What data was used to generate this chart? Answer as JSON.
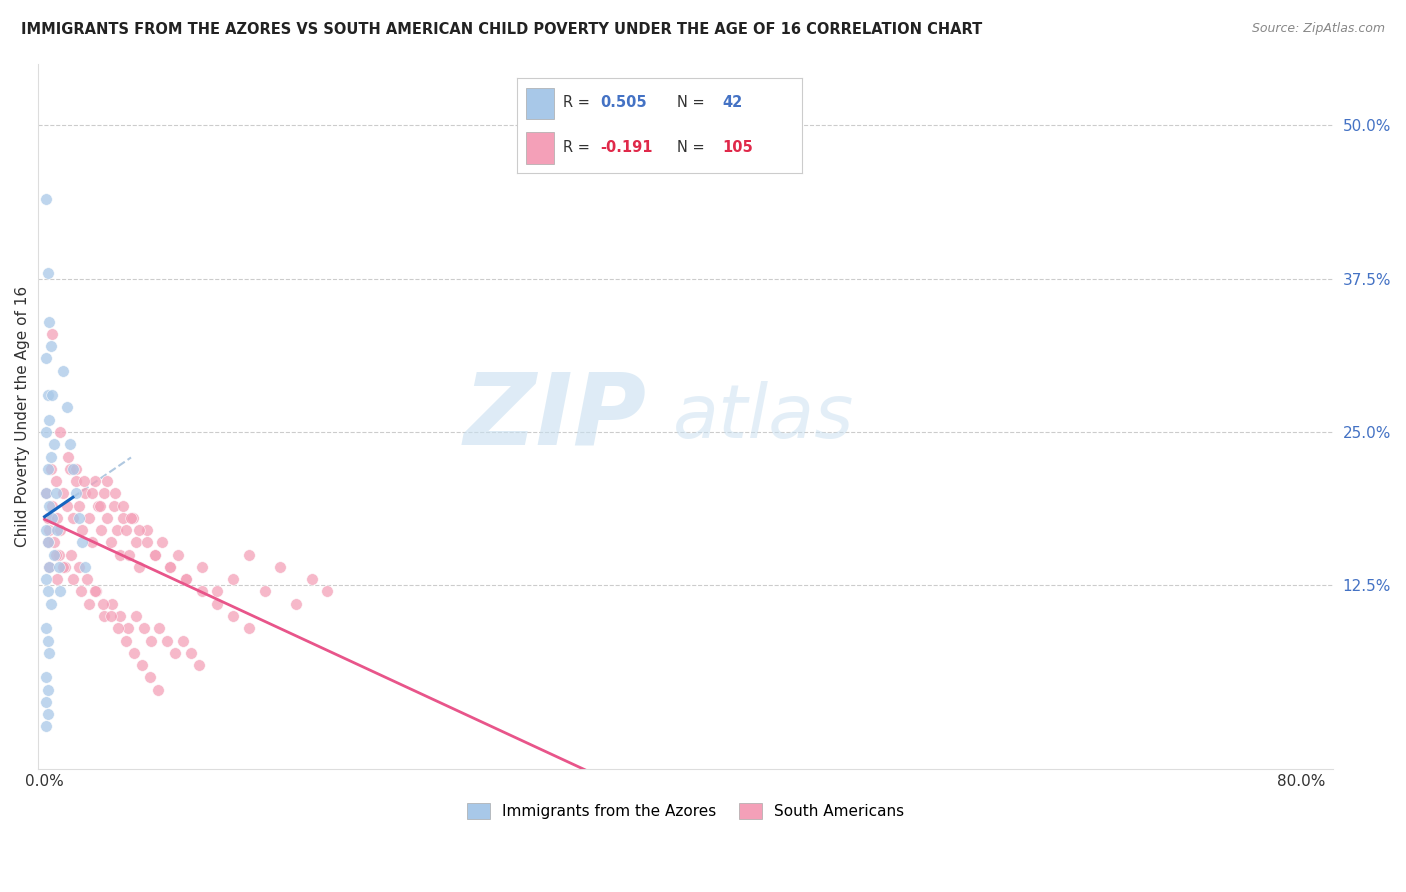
{
  "title": "IMMIGRANTS FROM THE AZORES VS SOUTH AMERICAN CHILD POVERTY UNDER THE AGE OF 16 CORRELATION CHART",
  "source": "Source: ZipAtlas.com",
  "ylabel": "Child Poverty Under the Age of 16",
  "right_yticks": [
    "50.0%",
    "37.5%",
    "25.0%",
    "12.5%"
  ],
  "right_ytick_vals": [
    0.5,
    0.375,
    0.25,
    0.125
  ],
  "legend1_label": "Immigrants from the Azores",
  "legend2_label": "South Americans",
  "r1": "0.505",
  "n1": "42",
  "r2": "-0.191",
  "n2": "105",
  "blue_color": "#a8c8e8",
  "pink_color": "#f4a0b8",
  "line_blue": "#1565c0",
  "line_pink": "#e8558a",
  "line_dash": "#b0c8e0",
  "watermark_zip": "ZIP",
  "watermark_atlas": "atlas",
  "xlim_max": 0.8,
  "ylim_max": 0.55,
  "blue_x": [
    0.001,
    0.001,
    0.001,
    0.001,
    0.001,
    0.001,
    0.001,
    0.001,
    0.001,
    0.001,
    0.002,
    0.002,
    0.002,
    0.002,
    0.002,
    0.002,
    0.002,
    0.002,
    0.003,
    0.003,
    0.003,
    0.003,
    0.003,
    0.004,
    0.004,
    0.004,
    0.005,
    0.005,
    0.006,
    0.006,
    0.007,
    0.008,
    0.009,
    0.01,
    0.012,
    0.014,
    0.016,
    0.018,
    0.02,
    0.022,
    0.024,
    0.026
  ],
  "blue_y": [
    0.44,
    0.31,
    0.25,
    0.2,
    0.17,
    0.13,
    0.09,
    0.05,
    0.03,
    0.01,
    0.38,
    0.28,
    0.22,
    0.16,
    0.12,
    0.08,
    0.04,
    0.02,
    0.34,
    0.26,
    0.19,
    0.14,
    0.07,
    0.32,
    0.23,
    0.11,
    0.28,
    0.18,
    0.24,
    0.15,
    0.2,
    0.17,
    0.14,
    0.12,
    0.3,
    0.27,
    0.24,
    0.22,
    0.2,
    0.18,
    0.16,
    0.14
  ],
  "pink_x": [
    0.001,
    0.002,
    0.003,
    0.004,
    0.005,
    0.006,
    0.007,
    0.008,
    0.009,
    0.01,
    0.012,
    0.014,
    0.016,
    0.018,
    0.02,
    0.022,
    0.024,
    0.026,
    0.028,
    0.03,
    0.032,
    0.034,
    0.036,
    0.038,
    0.04,
    0.042,
    0.044,
    0.046,
    0.048,
    0.05,
    0.052,
    0.054,
    0.056,
    0.058,
    0.06,
    0.065,
    0.07,
    0.075,
    0.08,
    0.085,
    0.09,
    0.1,
    0.11,
    0.12,
    0.13,
    0.14,
    0.15,
    0.16,
    0.17,
    0.18,
    0.005,
    0.01,
    0.015,
    0.02,
    0.025,
    0.03,
    0.035,
    0.04,
    0.045,
    0.05,
    0.055,
    0.06,
    0.065,
    0.07,
    0.08,
    0.09,
    0.1,
    0.11,
    0.12,
    0.13,
    0.003,
    0.008,
    0.013,
    0.018,
    0.023,
    0.028,
    0.033,
    0.038,
    0.043,
    0.048,
    0.053,
    0.058,
    0.063,
    0.068,
    0.073,
    0.078,
    0.083,
    0.088,
    0.093,
    0.098,
    0.002,
    0.007,
    0.012,
    0.017,
    0.022,
    0.027,
    0.032,
    0.037,
    0.042,
    0.047,
    0.052,
    0.057,
    0.062,
    0.067,
    0.072
  ],
  "pink_y": [
    0.2,
    0.18,
    0.17,
    0.22,
    0.19,
    0.16,
    0.21,
    0.18,
    0.15,
    0.17,
    0.2,
    0.19,
    0.22,
    0.18,
    0.21,
    0.19,
    0.17,
    0.2,
    0.18,
    0.16,
    0.21,
    0.19,
    0.17,
    0.2,
    0.18,
    0.16,
    0.19,
    0.17,
    0.15,
    0.18,
    0.17,
    0.15,
    0.18,
    0.16,
    0.14,
    0.17,
    0.15,
    0.16,
    0.14,
    0.15,
    0.13,
    0.14,
    0.12,
    0.13,
    0.15,
    0.12,
    0.14,
    0.11,
    0.13,
    0.12,
    0.33,
    0.25,
    0.23,
    0.22,
    0.21,
    0.2,
    0.19,
    0.21,
    0.2,
    0.19,
    0.18,
    0.17,
    0.16,
    0.15,
    0.14,
    0.13,
    0.12,
    0.11,
    0.1,
    0.09,
    0.14,
    0.13,
    0.14,
    0.13,
    0.12,
    0.11,
    0.12,
    0.1,
    0.11,
    0.1,
    0.09,
    0.1,
    0.09,
    0.08,
    0.09,
    0.08,
    0.07,
    0.08,
    0.07,
    0.06,
    0.16,
    0.15,
    0.14,
    0.15,
    0.14,
    0.13,
    0.12,
    0.11,
    0.1,
    0.09,
    0.08,
    0.07,
    0.06,
    0.05,
    0.04
  ]
}
